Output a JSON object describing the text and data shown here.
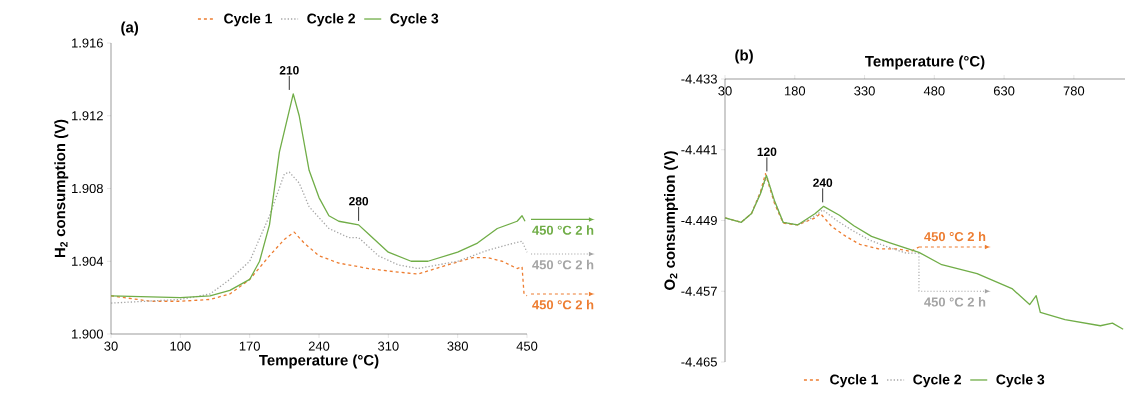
{
  "chart_data": [
    {
      "type": "line",
      "title": "(a)",
      "xlabel": "Temperature (°C)",
      "ylabel": "H$_{2}$ consumption (V)",
      "xlim": [
        30,
        450
      ],
      "xticks": [
        30,
        100,
        170,
        240,
        310,
        380,
        450
      ],
      "ylim": [
        1.9,
        1.916
      ],
      "yticks": [
        {
          "value": 1.9,
          "label": "1.900"
        },
        1.904,
        1.908,
        1.912,
        1.916
      ],
      "legend": "top",
      "series": [
        {
          "name": "Cycle 1",
          "color": "#ed7d31",
          "line_style": "dashed",
          "x": [
            30,
            70,
            100,
            130,
            150,
            170,
            190,
            205,
            215,
            225,
            240,
            260,
            290,
            320,
            340,
            370,
            395,
            410,
            425,
            440,
            445,
            447,
            450
          ],
          "values": [
            1.9021,
            1.9018,
            1.9018,
            1.9019,
            1.9022,
            1.903,
            1.9043,
            1.9052,
            1.9056,
            1.905,
            1.9043,
            1.9039,
            1.9036,
            1.9034,
            1.9033,
            1.9038,
            1.9042,
            1.9042,
            1.904,
            1.9036,
            1.9037,
            1.9022,
            1.9021
          ]
        },
        {
          "name": "Cycle 2",
          "color": "#a5a5a5",
          "line_style": "dotted",
          "x": [
            30,
            100,
            130,
            150,
            170,
            190,
            205,
            210,
            220,
            230,
            250,
            270,
            280,
            300,
            320,
            340,
            380,
            410,
            430,
            445,
            450
          ],
          "values": [
            1.9017,
            1.9019,
            1.9022,
            1.903,
            1.904,
            1.9065,
            1.9088,
            1.9089,
            1.9083,
            1.907,
            1.9058,
            1.9053,
            1.9053,
            1.9043,
            1.9038,
            1.9036,
            1.904,
            1.9046,
            1.9049,
            1.9051,
            1.9045
          ]
        },
        {
          "name": "Cycle 3",
          "color": "#70ad47",
          "line_style": "solid",
          "x": [
            30,
            100,
            130,
            150,
            170,
            180,
            190,
            200,
            214,
            220,
            230,
            240,
            250,
            260,
            280,
            290,
            310,
            333,
            350,
            380,
            400,
            420,
            440,
            445,
            448
          ],
          "values": [
            1.9021,
            1.902,
            1.9021,
            1.9024,
            1.903,
            1.904,
            1.906,
            1.91,
            1.9132,
            1.912,
            1.909,
            1.9075,
            1.9065,
            1.9062,
            1.906,
            1.9055,
            1.9045,
            1.904,
            1.904,
            1.9045,
            1.905,
            1.9058,
            1.9062,
            1.9065,
            1.9062
          ]
        }
      ],
      "annotations": [
        {
          "text": "210",
          "x": 210,
          "y": 1.9132
        },
        {
          "text": "280",
          "x": 280,
          "y": 1.906
        },
        {
          "text": "450 °C 2 h",
          "x": 450,
          "y": 1.9022
        },
        {
          "text": "450 °C 2 h",
          "x": 450,
          "y": 1.9044
        },
        {
          "text": "450 °C 2 h",
          "x": 450,
          "y": 1.9063
        }
      ]
    },
    {
      "type": "line",
      "title": "(b)",
      "xlabel": "Temperature (°C)",
      "ylabel": "O$_{2}$ consumption (V)",
      "xlim": [
        30,
        890
      ],
      "xticks": [
        30,
        180,
        330,
        480,
        630,
        780
      ],
      "ylim": [
        -4.465,
        -4.433
      ],
      "yticks": [
        -4.465,
        -4.457,
        -4.449,
        -4.441,
        -4.433
      ],
      "legend": "bottom",
      "series": [
        {
          "name": "Cycle 1",
          "color": "#ed7d31",
          "line_style": "dashed",
          "x": [
            30,
            65,
            87,
            106,
            117,
            136,
            155,
            186,
            224,
            235,
            260,
            290,
            320,
            360,
            400,
            430,
            447
          ],
          "values": [
            -4.4487,
            -4.4492,
            -4.4482,
            -4.4458,
            -4.4437,
            -4.447,
            -4.4493,
            -4.4495,
            -4.4487,
            -4.4482,
            -4.4497,
            -4.4508,
            -4.4517,
            -4.4522,
            -4.4522,
            -4.4525,
            -4.452
          ]
        },
        {
          "name": "Cycle 2",
          "color": "#a5a5a5",
          "line_style": "dotted",
          "x": [
            30,
            65,
            87,
            106,
            120,
            136,
            155,
            186,
            224,
            240,
            270,
            300,
            340,
            380,
            420,
            447
          ],
          "values": [
            -4.4487,
            -4.4492,
            -4.4482,
            -4.4459,
            -4.444,
            -4.4468,
            -4.4492,
            -4.4495,
            -4.4485,
            -4.4478,
            -4.449,
            -4.45,
            -4.4512,
            -4.452,
            -4.4527,
            -4.4527
          ]
        },
        {
          "name": "Cycle 3",
          "color": "#70ad47",
          "line_style": "solid",
          "x": [
            30,
            65,
            87,
            106,
            119,
            136,
            155,
            186,
            224,
            242,
            276,
            307,
            345,
            383,
            447,
            496,
            572,
            647,
            685,
            699,
            708,
            761,
            837,
            863,
            886
          ],
          "values": [
            -4.4487,
            -4.4492,
            -4.4482,
            -4.446,
            -4.4439,
            -4.4467,
            -4.4492,
            -4.4495,
            -4.4482,
            -4.4474,
            -4.4484,
            -4.4496,
            -4.4508,
            -4.4515,
            -4.4526,
            -4.454,
            -4.455,
            -4.4567,
            -4.4585,
            -4.4575,
            -4.4594,
            -4.4602,
            -4.4609,
            -4.4606,
            -4.4613
          ]
        }
      ],
      "annotations": [
        {
          "text": "120",
          "x": 120,
          "y": -4.4439
        },
        {
          "text": "240",
          "x": 240,
          "y": -4.4474
        },
        {
          "text": "450 °C 2 h",
          "x": 447,
          "y": -4.452
        },
        {
          "text": "450 °C 2 h",
          "x": 447,
          "y": -4.4527
        }
      ]
    }
  ]
}
